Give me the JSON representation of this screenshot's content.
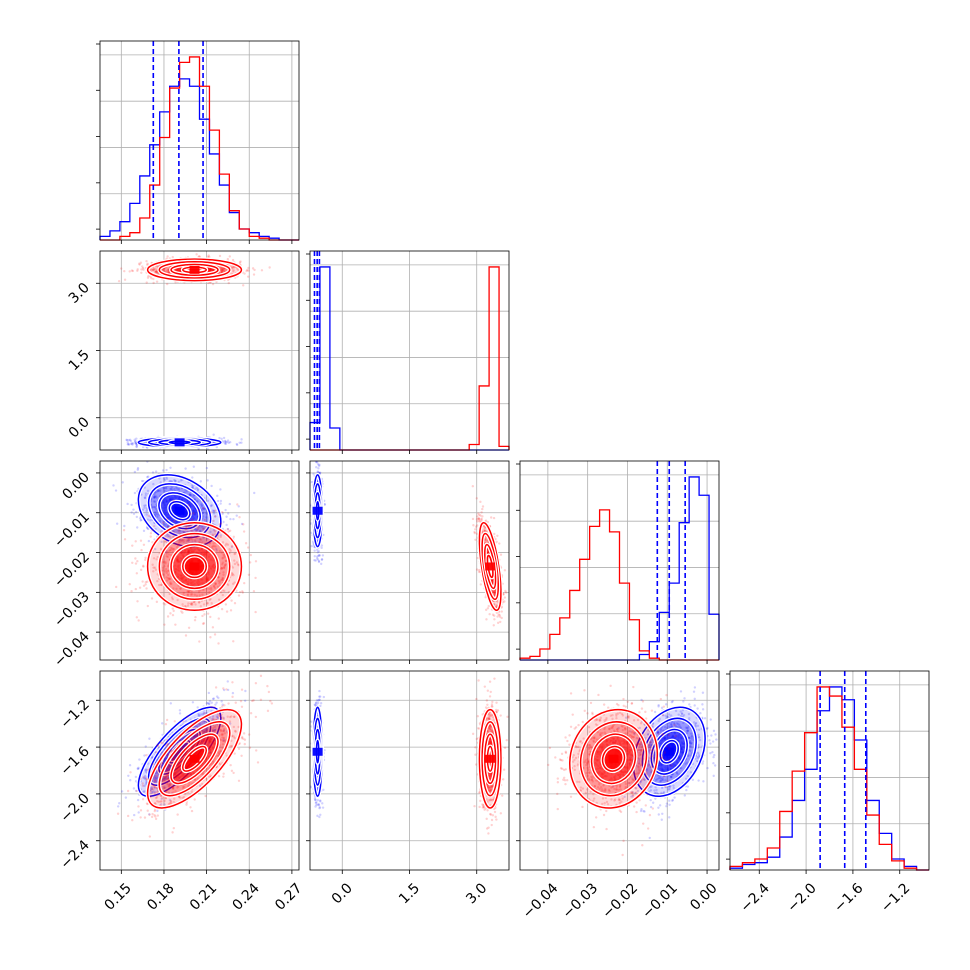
{
  "chart_data": {
    "type": "corner",
    "grid": true,
    "colors": {
      "posterior_a": "#0000ff",
      "posterior_b": "#ff0000"
    },
    "series": [
      {
        "color": "#0000ff",
        "params": [
          {
            "mean": 0.191,
            "sd": 0.0145
          },
          {
            "mean": -0.55,
            "sd": 0.05
          },
          {
            "mean": -0.0095,
            "sd": 0.0045
          },
          {
            "mean": -1.64,
            "sd": 0.19
          }
        ],
        "correlations": [
          [
            0,
            3,
            0.75
          ],
          [
            0,
            2,
            -0.3
          ],
          [
            2,
            3,
            0.3
          ]
        ],
        "quantile_lines": [
          [
            0.1725,
            0.1905,
            0.2075
          ],
          [
            -0.62,
            -0.56,
            -0.51
          ],
          [
            -0.0125,
            -0.0095,
            -0.0055
          ],
          [
            -1.88,
            -1.67,
            -1.49
          ]
        ],
        "hist_heights": [
          [
            0.02,
            0.05,
            0.1,
            0.2,
            0.35,
            0.52,
            0.7,
            0.84,
            0.88,
            0.84,
            0.66,
            0.47,
            0.3,
            0.15,
            0.06,
            0.04,
            0.02,
            0.01,
            0.0,
            0.0
          ],
          [
            0.15,
            1.0,
            0.12,
            0.0,
            0.0,
            0.0,
            0.0,
            0.0,
            0.0,
            0.0,
            0.0,
            0.0,
            0.0,
            0.0,
            0.0,
            0.0,
            0.0,
            0.0,
            0.0,
            0.0
          ],
          [
            0.0,
            0.0,
            0.0,
            0.0,
            0.0,
            0.0,
            0.0,
            0.0,
            0.0,
            0.0,
            0.0,
            0.0,
            0.03,
            0.1,
            0.26,
            0.42,
            0.75,
            1.0,
            0.9,
            0.25
          ],
          [
            0.01,
            0.03,
            0.04,
            0.07,
            0.18,
            0.38,
            0.55,
            0.87,
            1.0,
            0.93,
            0.71,
            0.38,
            0.2,
            0.06,
            0.02,
            0.0
          ]
        ]
      },
      {
        "color": "#ff0000",
        "params": [
          {
            "mean": 0.2015,
            "sd": 0.0165
          },
          {
            "mean": 3.3,
            "sd": 0.12
          },
          {
            "mean": -0.0235,
            "sd": 0.0055
          },
          {
            "mean": -1.7,
            "sd": 0.21
          }
        ],
        "correlations": [
          [
            0,
            3,
            0.7
          ],
          [
            1,
            2,
            -0.6
          ],
          [
            2,
            3,
            0.1
          ]
        ],
        "hist_heights": [
          [
            0.0,
            0.0,
            0.02,
            0.04,
            0.12,
            0.3,
            0.56,
            0.83,
            0.97,
            1.0,
            0.84,
            0.6,
            0.36,
            0.16,
            0.06,
            0.02,
            0.01,
            0.0,
            0.0,
            0.0
          ],
          [
            0.0,
            0.0,
            0.0,
            0.0,
            0.0,
            0.0,
            0.0,
            0.0,
            0.0,
            0.0,
            0.0,
            0.0,
            0.0,
            0.0,
            0.0,
            0.0,
            0.03,
            0.35,
            1.0,
            0.02
          ],
          [
            0.01,
            0.02,
            0.06,
            0.14,
            0.23,
            0.38,
            0.55,
            0.73,
            0.82,
            0.7,
            0.42,
            0.22,
            0.05,
            0.01,
            0.0,
            0.0,
            0.0,
            0.0,
            0.0,
            0.0
          ],
          [
            0.02,
            0.04,
            0.06,
            0.12,
            0.32,
            0.54,
            0.75,
            1.0,
            0.95,
            0.78,
            0.55,
            0.3,
            0.14,
            0.05,
            0.01,
            0.0
          ]
        ]
      }
    ],
    "axes": [
      {
        "range": [
          0.135,
          0.275
        ],
        "ticks": [
          0.15,
          0.18,
          0.21,
          0.24,
          0.27
        ],
        "tick_labels": [
          "0.15",
          "0.18",
          "0.21",
          "0.24",
          "0.27"
        ]
      },
      {
        "range": [
          -0.72,
          3.72
        ],
        "ticks": [
          0.0,
          1.5,
          3.0
        ],
        "tick_labels": [
          "0.0",
          "1.5",
          "3.0"
        ]
      },
      {
        "range": [
          -0.047,
          0.003
        ],
        "ticks": [
          -0.04,
          -0.03,
          -0.02,
          -0.01,
          0.0
        ],
        "tick_labels": [
          "−0.04",
          "−0.03",
          "−0.02",
          "−0.01",
          "0.00"
        ]
      },
      {
        "range": [
          -2.65,
          -0.95
        ],
        "ticks": [
          -2.4,
          -2.0,
          -1.6,
          -1.2
        ],
        "tick_labels": [
          "−2.4",
          "−2.0",
          "−1.6",
          "−1.2"
        ]
      }
    ]
  }
}
